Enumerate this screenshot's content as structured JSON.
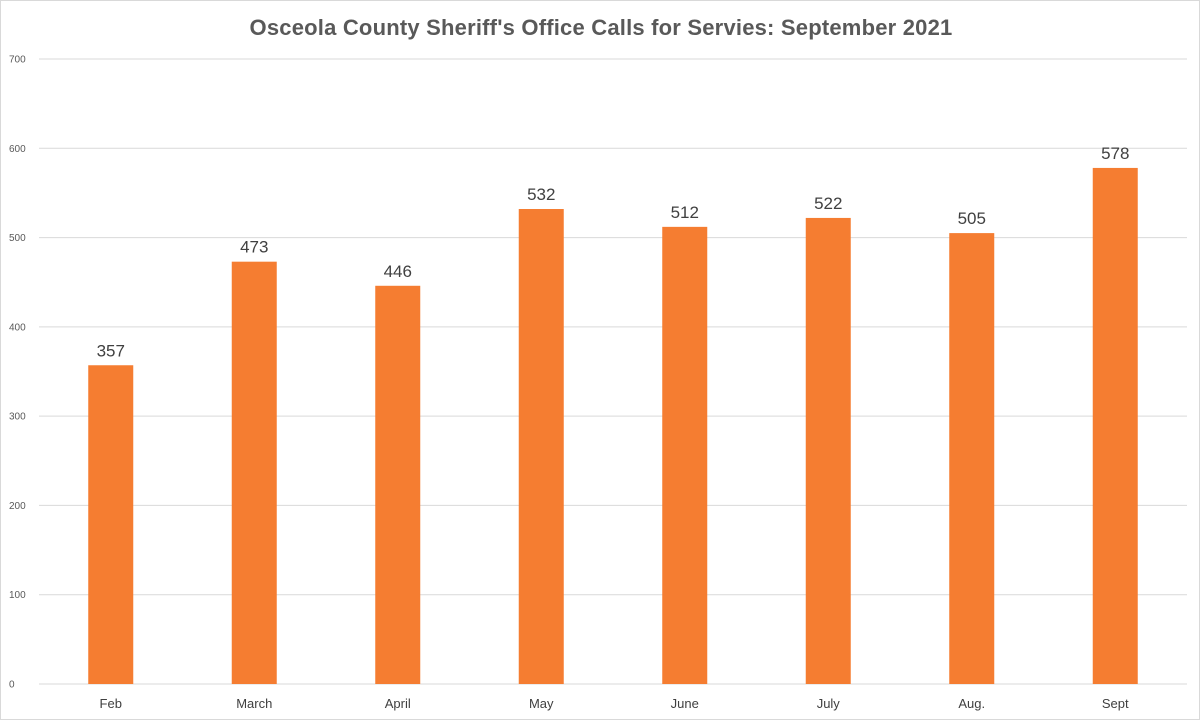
{
  "chart_data": {
    "type": "bar",
    "title": "Osceola County Sheriff's Office Calls for Servies: September 2021",
    "xlabel": "",
    "ylabel": "",
    "categories": [
      "Feb",
      "March",
      "April",
      "May",
      "June",
      "July",
      "Aug.",
      "Sept"
    ],
    "values": [
      357,
      473,
      446,
      532,
      512,
      522,
      505,
      578
    ],
    "ylim": [
      0,
      700
    ],
    "yticks": [
      0,
      100,
      200,
      300,
      400,
      500,
      600,
      700
    ],
    "grid": true,
    "legend": "none",
    "data_labels": true,
    "bar_color": "#F57D31",
    "grid_color": "#D9D9D9"
  }
}
